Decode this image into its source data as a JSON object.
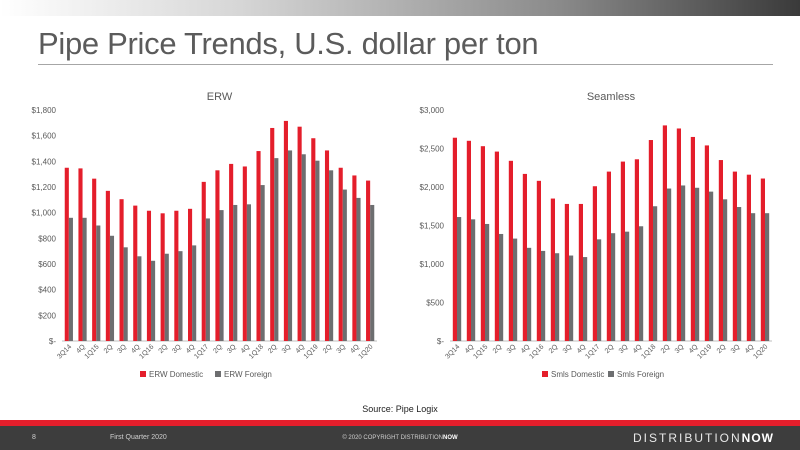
{
  "slide": {
    "title": "Pipe Price Trends, U.S. dollar per ton",
    "source": "Source:  Pipe Logix",
    "page_number": "8",
    "period": "First Quarter 2020",
    "copyright_prefix": "© 2020 COPYRIGHT DISTRIBUTION",
    "copyright_suffix": "NOW",
    "logo_prefix": "DISTRIBUTION",
    "logo_suffix": "NOW"
  },
  "colors": {
    "domestic": "#e41e2b",
    "foreign": "#6d6e70",
    "accent": "#e41e2b"
  },
  "chart_data": [
    {
      "type": "bar",
      "title": "ERW",
      "categories": [
        "3Q14",
        "4Q",
        "1Q15",
        "2Q",
        "3Q",
        "4Q",
        "1Q16",
        "2Q",
        "3Q",
        "4Q",
        "1Q17",
        "2Q",
        "3Q",
        "4Q",
        "1Q18",
        "2Q",
        "3Q",
        "4Q",
        "1Q19",
        "2Q",
        "3Q",
        "4Q",
        "1Q20"
      ],
      "series": [
        {
          "name": "ERW Domestic",
          "values": [
            1350,
            1345,
            1265,
            1170,
            1105,
            1055,
            1015,
            995,
            1015,
            1030,
            1240,
            1330,
            1380,
            1360,
            1480,
            1660,
            1715,
            1670,
            1580,
            1485,
            1350,
            1290,
            1250
          ]
        },
        {
          "name": "ERW Foreign",
          "values": [
            960,
            960,
            900,
            820,
            730,
            660,
            625,
            680,
            700,
            745,
            955,
            1020,
            1060,
            1065,
            1215,
            1425,
            1485,
            1455,
            1405,
            1330,
            1180,
            1115,
            1060
          ]
        }
      ],
      "ylim": [
        0,
        1800
      ],
      "yticks": [
        0,
        200,
        400,
        600,
        800,
        1000,
        1200,
        1400,
        1600,
        1800
      ],
      "ytick_labels": [
        "$-",
        "$200",
        "$400",
        "$600",
        "$800",
        "$1,000",
        "$1,200",
        "$1,400",
        "$1,600",
        "$1,800"
      ],
      "legend": "bottom",
      "grid": false
    },
    {
      "type": "bar",
      "title": "Seamless",
      "categories": [
        "3Q14",
        "4Q",
        "1Q15",
        "2Q",
        "3Q",
        "4Q",
        "1Q16",
        "2Q",
        "3Q",
        "4Q",
        "1Q17",
        "2Q",
        "3Q",
        "4Q",
        "1Q18",
        "2Q",
        "3Q",
        "4Q",
        "1Q19",
        "2Q",
        "3Q",
        "4Q",
        "1Q20"
      ],
      "series": [
        {
          "name": "Smls Domestic",
          "values": [
            2640,
            2600,
            2530,
            2460,
            2340,
            2170,
            2080,
            1850,
            1780,
            1780,
            2010,
            2200,
            2330,
            2360,
            2610,
            2800,
            2760,
            2650,
            2540,
            2350,
            2200,
            2160,
            2110
          ]
        },
        {
          "name": "Smls Foreign",
          "values": [
            1610,
            1580,
            1520,
            1390,
            1330,
            1210,
            1170,
            1140,
            1110,
            1090,
            1320,
            1400,
            1420,
            1490,
            1750,
            1980,
            2020,
            1990,
            1940,
            1840,
            1740,
            1660,
            1660
          ]
        }
      ],
      "ylim": [
        0,
        3000
      ],
      "yticks": [
        0,
        500,
        1000,
        1500,
        2000,
        2500,
        3000
      ],
      "ytick_labels": [
        "$-",
        "$500",
        "$1,000",
        "$1,500",
        "$2,000",
        "$2,500",
        "$3,000"
      ],
      "legend": "bottom",
      "grid": false
    }
  ]
}
